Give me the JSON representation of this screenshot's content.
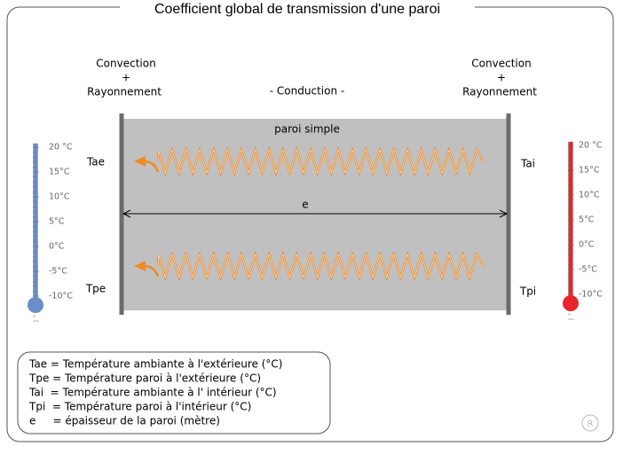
{
  "header": {
    "title": "Coefficient global de transmission d'une paroi"
  },
  "left_heading": [
    "Convection",
    "+",
    "Rayonnement"
  ],
  "right_heading": [
    "Convection",
    "+",
    "Rayonnement"
  ],
  "middle_heading": "- Conduction -",
  "wall": {
    "label": "paroi simple",
    "thickness_label": "e"
  },
  "points": {
    "tae": "Tae",
    "tpe": "Tpe",
    "tai": "Tai",
    "tpi": "Tpi"
  },
  "thermometers": {
    "left": {
      "scale": [
        "20 °C",
        "15°C",
        "10°C",
        "5°C",
        "0°C",
        "-5°C",
        "-10°C"
      ]
    },
    "right": {
      "scale": [
        "20 °C",
        "15°C",
        "10°C",
        "5°C",
        "0°C",
        "-5°C",
        "-10°C"
      ]
    }
  },
  "legend": {
    "lines": [
      "Tae = Température ambiante à l'extérieure (°C)",
      "Tpe = Température paroi à l'extérieure (°C)",
      "Tai  = Température ambiante à l' intérieur (°C)",
      "Tpi  = Température paroi à l'intérieur (°C)",
      "e     = épaisseur de la paroi (mètre)"
    ]
  },
  "mark": "R"
}
